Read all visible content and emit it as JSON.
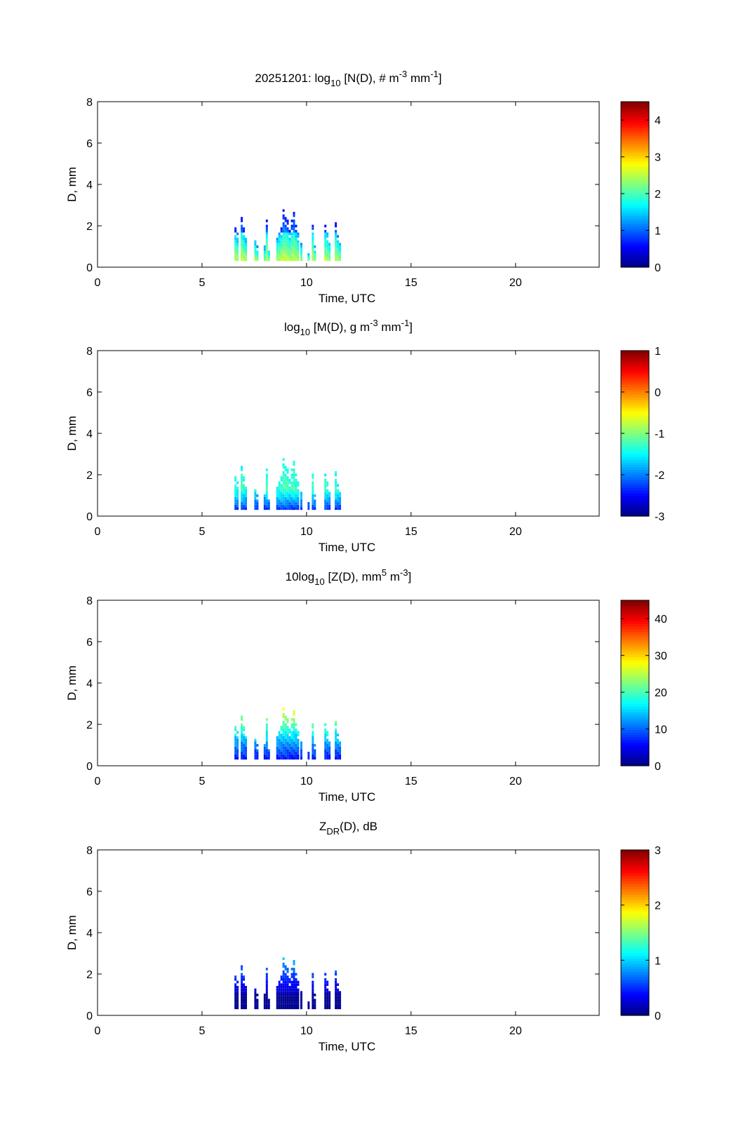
{
  "figure": {
    "date_prefix": "20251201: "
  },
  "chart_data": [
    {
      "type": "heatmap",
      "title": {
        "pre": "20251201: log",
        "sub": "10",
        "mid": " [N(D), # m",
        "sup1": "-3",
        "mid2": " mm",
        "sup2": "-1",
        "post": "]"
      },
      "xlabel": "Time, UTC",
      "ylabel": "D, mm",
      "xlim": [
        0,
        24
      ],
      "ylim": [
        0,
        8
      ],
      "xticks": [
        "0",
        "5",
        "10",
        "15",
        "20"
      ],
      "yticks": [
        "0",
        "2",
        "4",
        "6",
        "8"
      ],
      "colorbar": {
        "min": 0,
        "max": 4.5,
        "ticks": [
          "0",
          "1",
          "2",
          "3",
          "4"
        ],
        "tick_values": [
          0,
          1,
          2,
          3,
          4
        ]
      },
      "mode": "N"
    },
    {
      "type": "heatmap",
      "title": {
        "pre": "log",
        "sub": "10",
        "mid": " [M(D), g m",
        "sup1": "-3",
        "mid2": " mm",
        "sup2": "-1",
        "post": "]"
      },
      "xlabel": "Time, UTC",
      "ylabel": "D, mm",
      "xlim": [
        0,
        24
      ],
      "ylim": [
        0,
        8
      ],
      "xticks": [
        "0",
        "5",
        "10",
        "15",
        "20"
      ],
      "yticks": [
        "0",
        "2",
        "4",
        "6",
        "8"
      ],
      "colorbar": {
        "min": -3,
        "max": 1,
        "ticks": [
          "-3",
          "-2",
          "-1",
          "0",
          "1"
        ],
        "tick_values": [
          -3,
          -2,
          -1,
          0,
          1
        ]
      },
      "mode": "M"
    },
    {
      "type": "heatmap",
      "title": {
        "pre": "10log",
        "sub": "10",
        "mid": " [Z(D),  mm",
        "sup1": "5",
        "mid2": " m",
        "sup2": "-3",
        "post": "]"
      },
      "xlabel": "Time, UTC",
      "ylabel": "D, mm",
      "xlim": [
        0,
        24
      ],
      "ylim": [
        0,
        8
      ],
      "xticks": [
        "0",
        "5",
        "10",
        "15",
        "20"
      ],
      "yticks": [
        "0",
        "2",
        "4",
        "6",
        "8"
      ],
      "colorbar": {
        "min": 0,
        "max": 45,
        "ticks": [
          "0",
          "10",
          "20",
          "30",
          "40"
        ],
        "tick_values": [
          0,
          10,
          20,
          30,
          40
        ]
      },
      "mode": "Z"
    },
    {
      "type": "heatmap",
      "title": {
        "pre": "Z",
        "sub": "DR",
        "mid": "(D), dB",
        "sup1": "",
        "mid2": "",
        "sup2": "",
        "post": ""
      },
      "xlabel": "Time, UTC",
      "ylabel": "D, mm",
      "xlim": [
        0,
        24
      ],
      "ylim": [
        0,
        8
      ],
      "xticks": [
        "0",
        "5",
        "10",
        "15",
        "20"
      ],
      "yticks": [
        "0",
        "2",
        "4",
        "6",
        "8"
      ],
      "colorbar": {
        "min": 0,
        "max": 3,
        "ticks": [
          "0",
          "1",
          "2",
          "3"
        ],
        "tick_values": [
          0,
          1,
          2,
          3
        ]
      },
      "mode": "ZDR"
    }
  ],
  "events": [
    {
      "t": 6.55,
      "dmax": 1.9
    },
    {
      "t": 6.65,
      "dmax": 1.6
    },
    {
      "t": 6.85,
      "dmax": 2.5
    },
    {
      "t": 6.95,
      "dmax": 1.9
    },
    {
      "t": 7.05,
      "dmax": 1.5
    },
    {
      "t": 7.5,
      "dmax": 1.4
    },
    {
      "t": 7.6,
      "dmax": 1.0
    },
    {
      "t": 7.95,
      "dmax": 1.0
    },
    {
      "t": 8.05,
      "dmax": 2.3
    },
    {
      "t": 8.15,
      "dmax": 0.9
    },
    {
      "t": 8.55,
      "dmax": 1.5
    },
    {
      "t": 8.65,
      "dmax": 1.8
    },
    {
      "t": 8.75,
      "dmax": 2.0
    },
    {
      "t": 8.85,
      "dmax": 2.7
    },
    {
      "t": 8.95,
      "dmax": 2.5
    },
    {
      "t": 9.05,
      "dmax": 2.3
    },
    {
      "t": 9.15,
      "dmax": 1.8
    },
    {
      "t": 9.25,
      "dmax": 2.2
    },
    {
      "t": 9.35,
      "dmax": 2.7
    },
    {
      "t": 9.45,
      "dmax": 2.0
    },
    {
      "t": 9.55,
      "dmax": 1.6
    },
    {
      "t": 9.7,
      "dmax": 1.1
    },
    {
      "t": 10.05,
      "dmax": 0.7
    },
    {
      "t": 10.25,
      "dmax": 2.1
    },
    {
      "t": 10.35,
      "dmax": 1.0
    },
    {
      "t": 10.85,
      "dmax": 2.0
    },
    {
      "t": 10.95,
      "dmax": 1.7
    },
    {
      "t": 11.05,
      "dmax": 1.3
    },
    {
      "t": 11.35,
      "dmax": 2.1
    },
    {
      "t": 11.45,
      "dmax": 1.5
    },
    {
      "t": 11.55,
      "dmax": 1.2
    }
  ]
}
